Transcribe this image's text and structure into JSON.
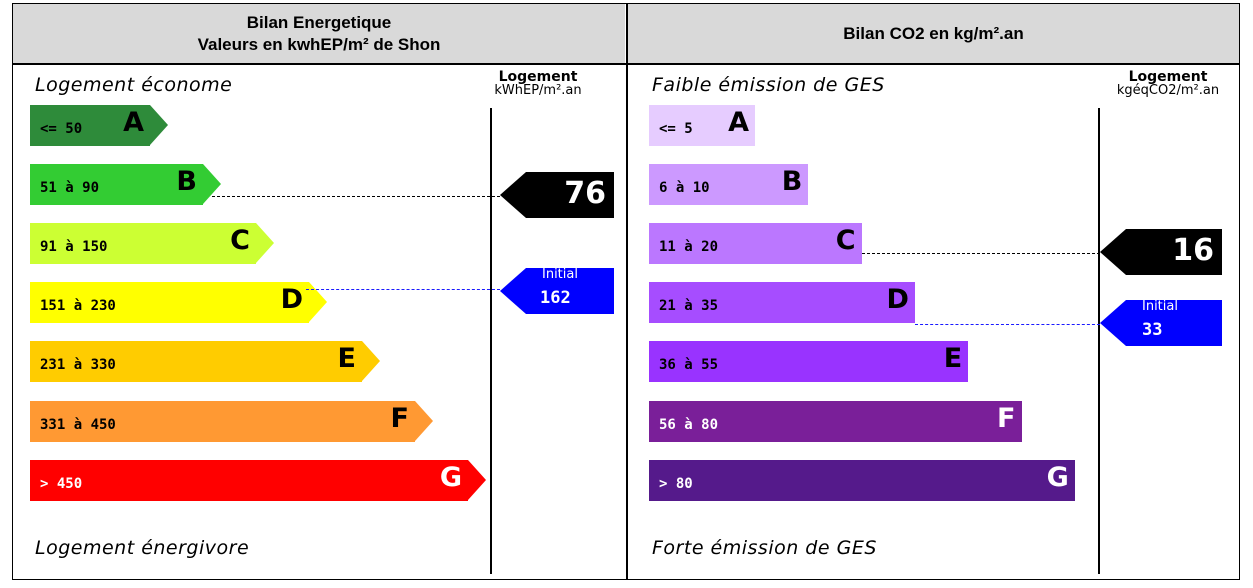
{
  "left": {
    "header_line1": "Bilan Energetique",
    "header_line2": "Valeurs en kwhEP/m² de Shon",
    "top_label": "Logement économe",
    "bottom_label": "Logement énergivore",
    "col_title": "Logement",
    "col_unit": "kWhEP/m².an",
    "current_value": "76",
    "initial_label": "Initial",
    "initial_value": "162"
  },
  "right": {
    "header": "Bilan CO2 en kg/m².an",
    "top_label": "Faible émission de GES",
    "bottom_label": "Forte émission de GES",
    "col_title": "Logement",
    "col_unit": "kgéqCO2/m².an",
    "current_value": "16",
    "initial_label": "Initial",
    "initial_value": "33"
  },
  "colors": {
    "energy": [
      "#2e8b3a",
      "#33cc33",
      "#ccff33",
      "#ffff00",
      "#ffcc00",
      "#ff9933",
      "#ff0000"
    ],
    "ges": [
      "#e6ccff",
      "#cc99ff",
      "#bb77ff",
      "#a64dff",
      "#9933ff",
      "#7a1f99",
      "#551a8b"
    ],
    "current_marker": "#000000",
    "initial_marker": "#0000ff"
  },
  "chart_data": [
    {
      "type": "bar",
      "title": "Bilan Energetique",
      "categories": [
        "A",
        "B",
        "C",
        "D",
        "E",
        "F",
        "G"
      ],
      "ranges": [
        "<= 50",
        "51 à 90",
        "91 à 150",
        "151 à 230",
        "231 à 330",
        "331 à 450",
        "> 450"
      ],
      "values": [
        1,
        2,
        3,
        4,
        5,
        6,
        7
      ],
      "current": 76,
      "current_class": "B",
      "initial": 162,
      "initial_class": "D"
    },
    {
      "type": "bar",
      "title": "Bilan CO2 en kg/m².an",
      "categories": [
        "A",
        "B",
        "C",
        "D",
        "E",
        "F",
        "G"
      ],
      "ranges": [
        "<= 5",
        "6 à 10",
        "11 à 20",
        "21 à 35",
        "36 à 55",
        "56 à 80",
        "> 80"
      ],
      "values": [
        1,
        2,
        3,
        4,
        5,
        6,
        7
      ],
      "current": 16,
      "current_class": "C",
      "initial": 33,
      "initial_class": "D"
    }
  ]
}
